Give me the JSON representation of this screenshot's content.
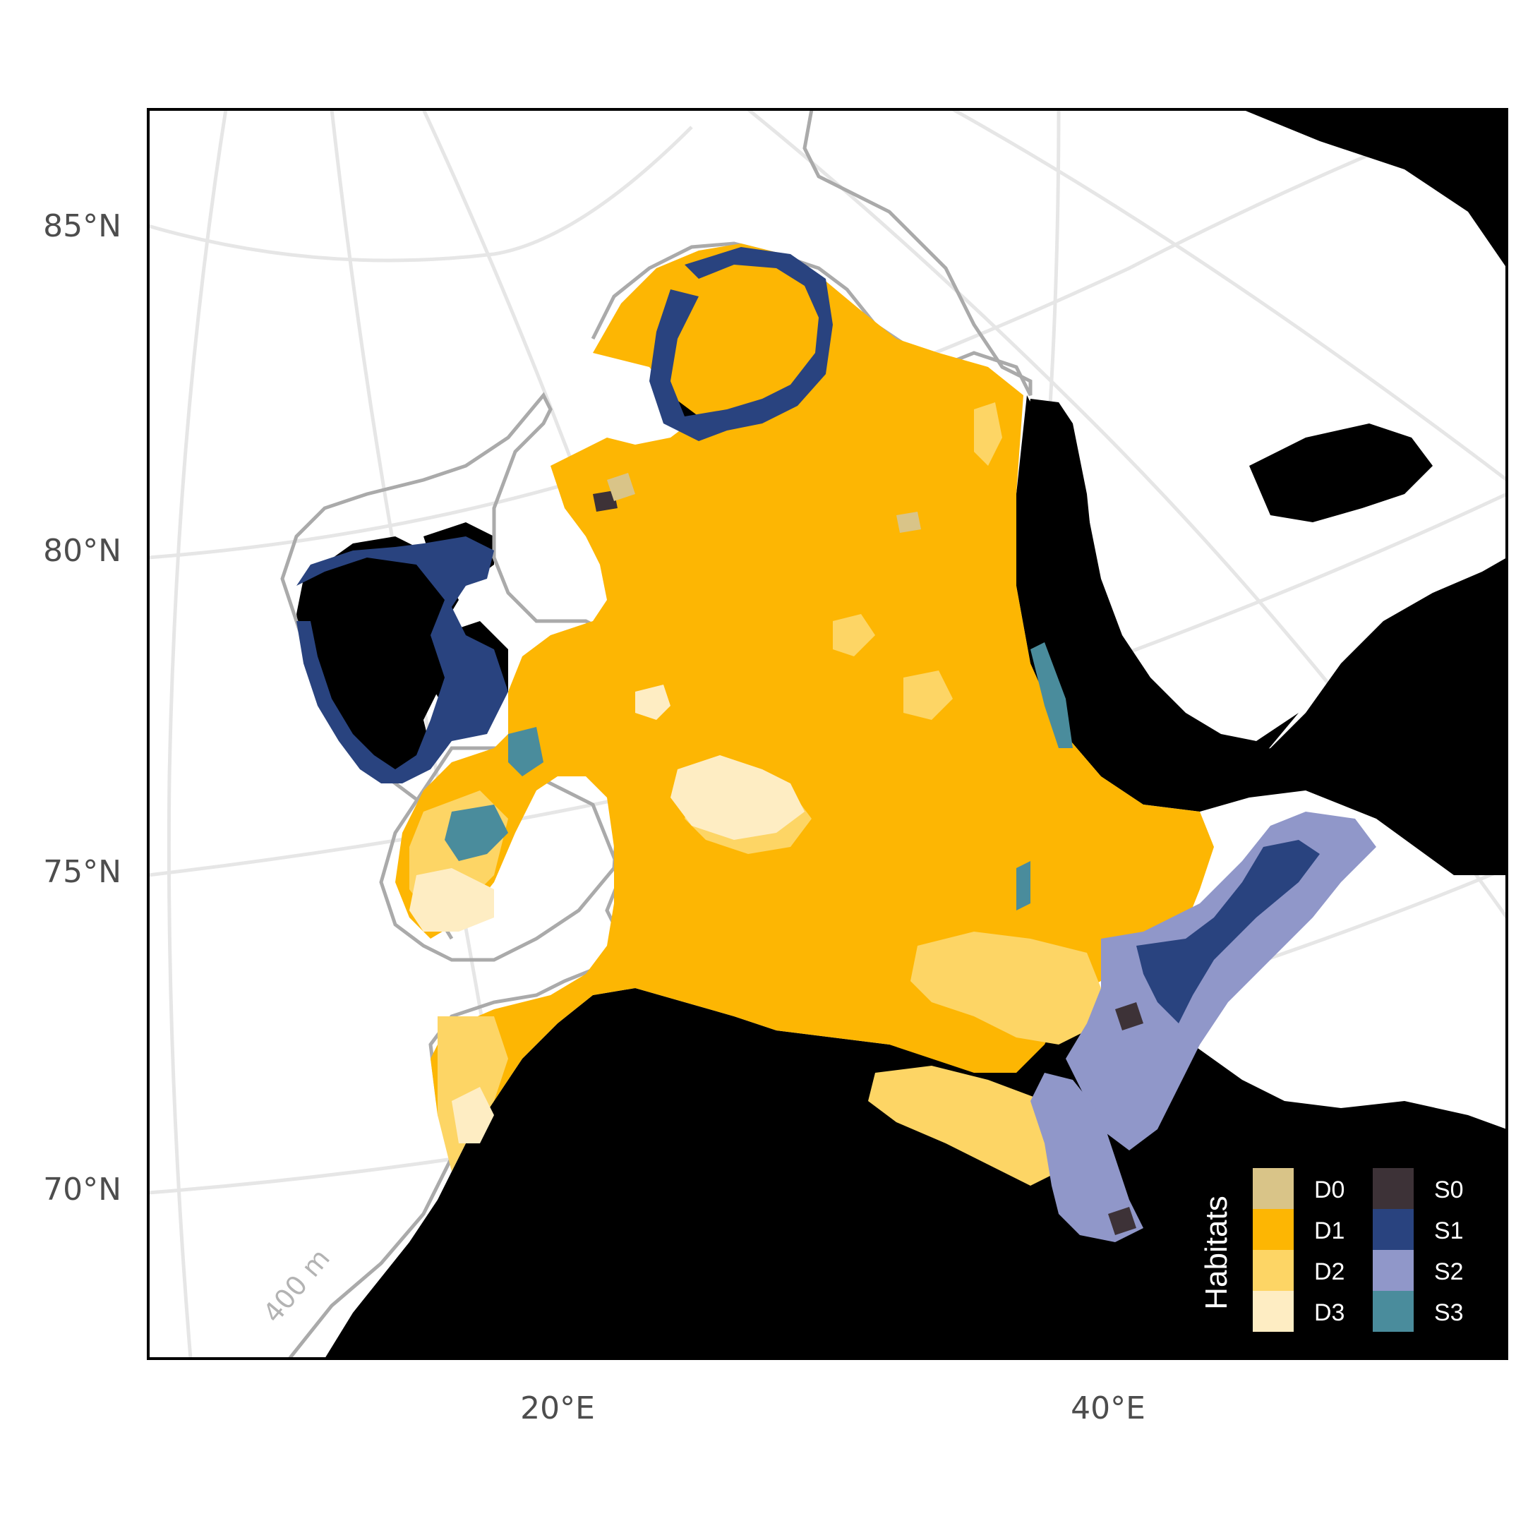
{
  "map": {
    "lat_labels": [
      "85°N",
      "80°N",
      "75°N",
      "70°N"
    ],
    "lon_labels": [
      "20°E",
      "40°E"
    ],
    "contour_label": "400 m"
  },
  "legend": {
    "title": "Habitats",
    "items": [
      {
        "label": "D0",
        "color": "#d9c488"
      },
      {
        "label": "D1",
        "color": "#fdb603"
      },
      {
        "label": "D2",
        "color": "#fdd565"
      },
      {
        "label": "D3",
        "color": "#feedc3"
      },
      {
        "label": "S0",
        "color": "#3d3237"
      },
      {
        "label": "S1",
        "color": "#29437f"
      },
      {
        "label": "S2",
        "color": "#9097c9"
      },
      {
        "label": "S3",
        "color": "#4a8c9c"
      }
    ]
  },
  "colors": {
    "land": "#000000",
    "sea": "#ffffff",
    "graticule": "#e6e6e6",
    "bathymetry_contour": "#aaaaaa"
  }
}
